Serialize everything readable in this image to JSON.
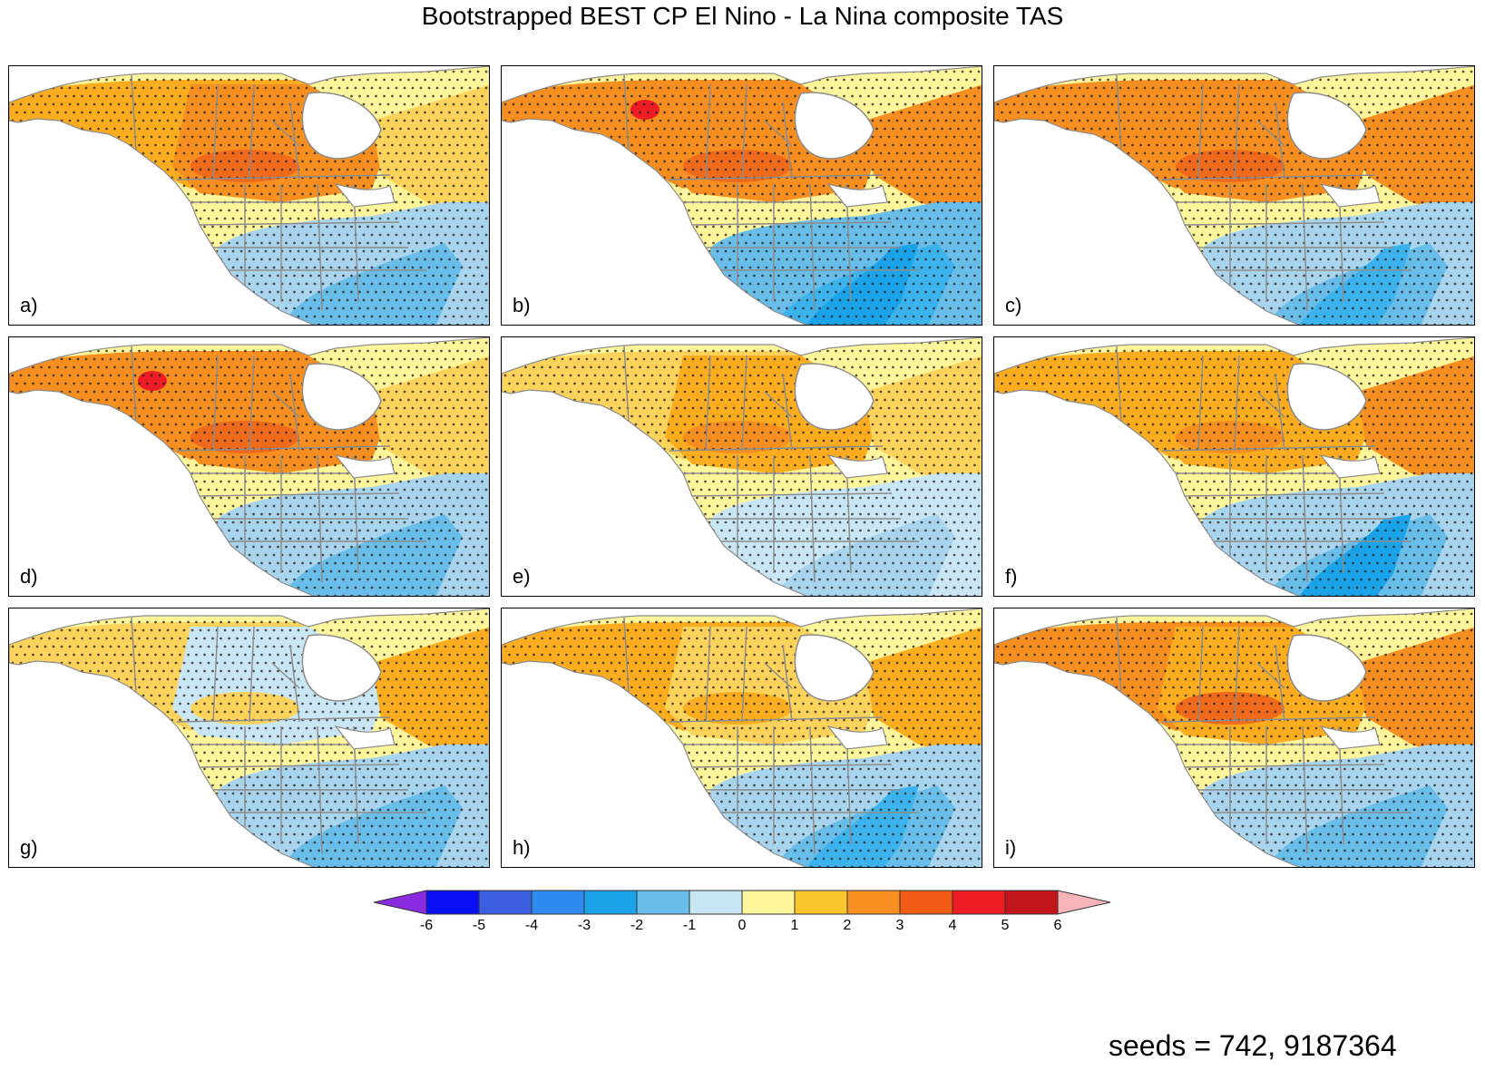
{
  "title": "Bootstrapped BEST CP El Nino - La Nina composite TAS",
  "panels": [
    {
      "label": "a)",
      "alaska": "#fbad1f",
      "north": "#f68f1f",
      "core": "#f06a1c",
      "hot": null,
      "hudsonE": "#fdd35b",
      "seBlue": "#a9d4ee",
      "seBlue2": "#69bde9",
      "seDeep": null,
      "arctic": "#c9e6f5"
    },
    {
      "label": "b)",
      "alaska": "#f68f1f",
      "north": "#f68f1f",
      "core": "#f06a1c",
      "hot": "#ee1c24",
      "hudsonE": "#f68f1f",
      "seBlue": "#69bde9",
      "seBlue2": "#3cb3ec",
      "seDeep": "#1aa3e8",
      "arctic": "#f06a1c"
    },
    {
      "label": "c)",
      "alaska": "#f68f1f",
      "north": "#f68f1f",
      "core": "#f06a1c",
      "hot": null,
      "hudsonE": "#f68f1f",
      "seBlue": "#a9d4ee",
      "seBlue2": "#69bde9",
      "seDeep": "#3cb3ec",
      "arctic": "#f68f1f"
    },
    {
      "label": "d)",
      "alaska": "#f68f1f",
      "north": "#f68f1f",
      "core": "#f06a1c",
      "hot": "#ee1c24",
      "hudsonE": "#fdd35b",
      "seBlue": "#a9d4ee",
      "seBlue2": "#69bde9",
      "seDeep": null,
      "arctic": "#fbad1f"
    },
    {
      "label": "e)",
      "alaska": "#fdd35b",
      "north": "#fbad1f",
      "core": "#f68f1f",
      "hot": null,
      "hudsonE": "#fdd35b",
      "seBlue": "#c9e6f5",
      "seBlue2": "#a9d4ee",
      "seDeep": null,
      "arctic": "#c9e6f5"
    },
    {
      "label": "f)",
      "alaska": "#fbad1f",
      "north": "#fbad1f",
      "core": "#f68f1f",
      "hot": null,
      "hudsonE": "#f68f1f",
      "seBlue": "#a9d4ee",
      "seBlue2": "#69bde9",
      "seDeep": "#1aa3e8",
      "arctic": "#f06a1c"
    },
    {
      "label": "g)",
      "alaska": "#fdd35b",
      "north": "#c9e6f5",
      "core": "#fdd35b",
      "hot": null,
      "hudsonE": "#fbad1f",
      "seBlue": "#a9d4ee",
      "seBlue2": "#69bde9",
      "seDeep": null,
      "arctic": "#fbad1f"
    },
    {
      "label": "h)",
      "alaska": "#fbad1f",
      "north": "#fdd35b",
      "core": "#fbad1f",
      "hot": null,
      "hudsonE": "#fbad1f",
      "seBlue": "#a9d4ee",
      "seBlue2": "#69bde9",
      "seDeep": "#3cb3ec",
      "arctic": "#fbad1f"
    },
    {
      "label": "i)",
      "alaska": "#f68f1f",
      "north": "#fbad1f",
      "core": "#f06a1c",
      "hot": null,
      "hudsonE": "#f68f1f",
      "seBlue": "#a9d4ee",
      "seBlue2": "#69bde9",
      "seDeep": null,
      "arctic": "#f68f1f"
    }
  ],
  "colorbar": {
    "ticks": [
      "-6",
      "-5",
      "-4",
      "-3",
      "-2",
      "-1",
      "0",
      "1",
      "2",
      "3",
      "4",
      "5",
      "6"
    ],
    "colors": [
      "#0a10f5",
      "#3b5fe0",
      "#2c8af0",
      "#1aa3e8",
      "#69bde9",
      "#c9e6f5",
      "#fff59a",
      "#fbc62b",
      "#f68f1f",
      "#f25b16",
      "#ee1c24",
      "#c3161c"
    ],
    "low_end": "#8a2be2",
    "high_end": "#f9b4b9"
  },
  "seeds": "seeds = 742, 9187364"
}
